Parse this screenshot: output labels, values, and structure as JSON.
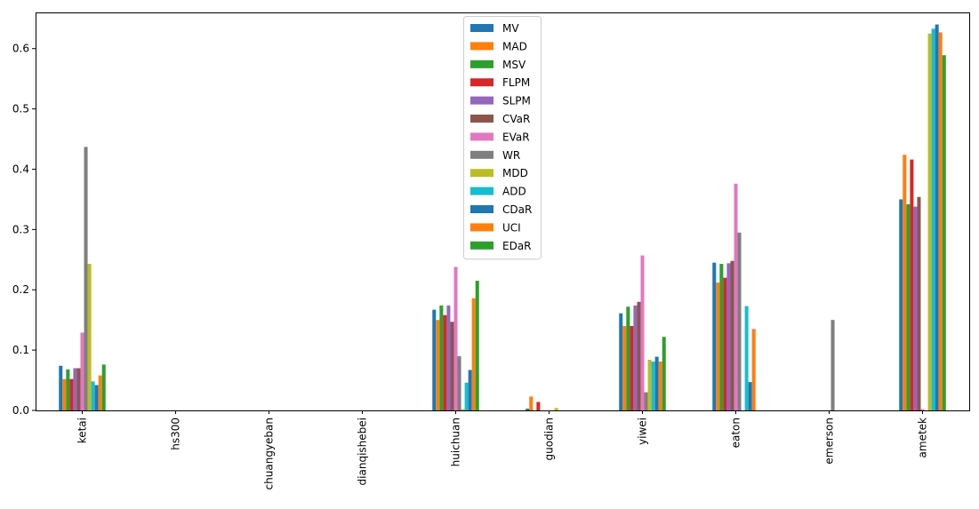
{
  "chart_data": {
    "type": "bar",
    "title": "",
    "xlabel": "",
    "ylabel": "",
    "ylim": [
      0,
      0.66
    ],
    "yticks": [
      "0.0",
      "0.1",
      "0.2",
      "0.3",
      "0.4",
      "0.5",
      "0.6"
    ],
    "legend_position": "top-center",
    "categories": [
      "ketai",
      "hs300",
      "chuangyeban",
      "dianqishebei",
      "huichuan",
      "guodian",
      "yiwei",
      "eaton",
      "emerson",
      "ametek"
    ],
    "series": [
      {
        "name": "MV",
        "color": "#1f77b4",
        "values": [
          0.074,
          0,
          0,
          0,
          0.167,
          0.003,
          0.161,
          0.245,
          0,
          0.35
        ]
      },
      {
        "name": "MAD",
        "color": "#ff7f0e",
        "values": [
          0.052,
          0,
          0,
          0,
          0.15,
          0.023,
          0.14,
          0.212,
          0,
          0.424
        ]
      },
      {
        "name": "MSV",
        "color": "#2ca02c",
        "values": [
          0.068,
          0,
          0,
          0,
          0.174,
          0,
          0.172,
          0.243,
          0,
          0.342
        ]
      },
      {
        "name": "FLPM",
        "color": "#d62728",
        "values": [
          0.052,
          0,
          0,
          0,
          0.158,
          0.014,
          0.14,
          0.22,
          0,
          0.416
        ]
      },
      {
        "name": "SLPM",
        "color": "#9467bd",
        "values": [
          0.07,
          0,
          0,
          0,
          0.174,
          0,
          0.174,
          0.244,
          0,
          0.338
        ]
      },
      {
        "name": "CVaR",
        "color": "#8c564b",
        "values": [
          0.07,
          0,
          0,
          0,
          0.147,
          0,
          0.18,
          0.248,
          0,
          0.354
        ]
      },
      {
        "name": "EVaR",
        "color": "#e377c2",
        "values": [
          0.129,
          0,
          0,
          0,
          0.238,
          0,
          0.257,
          0.376,
          0,
          0.002
        ]
      },
      {
        "name": "WR",
        "color": "#7f7f7f",
        "values": [
          0.437,
          0,
          0,
          0,
          0.09,
          0,
          0.03,
          0.295,
          0.15,
          0
        ]
      },
      {
        "name": "MDD",
        "color": "#bcbd22",
        "values": [
          0.243,
          0,
          0,
          0,
          0.002,
          0.004,
          0.084,
          0,
          0,
          0.625
        ]
      },
      {
        "name": "ADD",
        "color": "#17becf",
        "values": [
          0.048,
          0,
          0,
          0,
          0.046,
          0,
          0.081,
          0.173,
          0,
          0.633
        ]
      },
      {
        "name": "CDaR",
        "color": "#1f77b4",
        "values": [
          0.042,
          0,
          0,
          0,
          0.067,
          0,
          0.089,
          0.047,
          0,
          0.64
        ]
      },
      {
        "name": "UCI",
        "color": "#ff7f0e",
        "values": [
          0.058,
          0,
          0,
          0,
          0.186,
          0,
          0.081,
          0.135,
          0,
          0.627
        ]
      },
      {
        "name": "EDaR",
        "color": "#2ca02c",
        "values": [
          0.076,
          0,
          0,
          0,
          0.215,
          0,
          0.122,
          0,
          0,
          0.589
        ]
      }
    ]
  }
}
